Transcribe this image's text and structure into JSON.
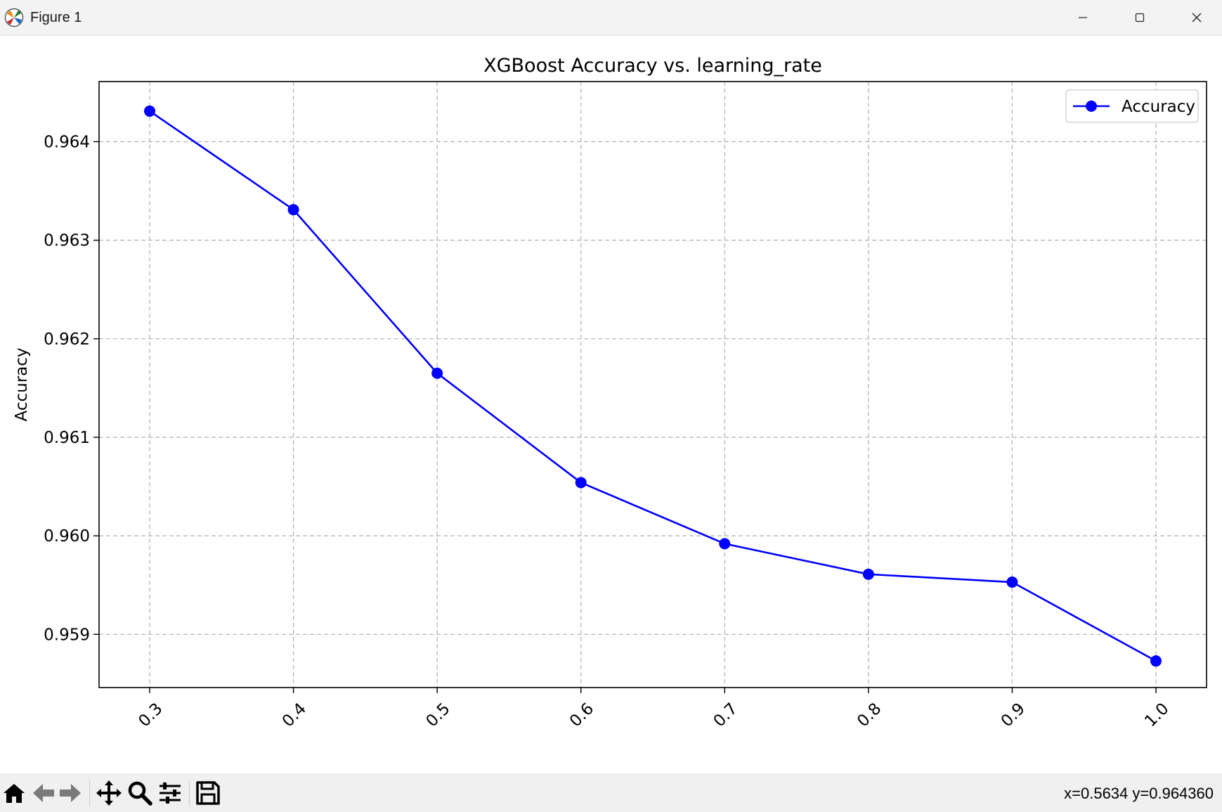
{
  "window": {
    "title": "Figure 1",
    "controls": [
      "minimize-icon",
      "maximize-icon",
      "close-icon"
    ]
  },
  "chart_data": {
    "type": "line",
    "title": "XGBoost Accuracy vs. learning_rate",
    "xlabel": "learning_rate",
    "ylabel": "Accuracy",
    "x": [
      0.3,
      0.4,
      0.5,
      0.6,
      0.7,
      0.8,
      0.9,
      1.0
    ],
    "x_tick_labels": [
      "0.3",
      "0.4",
      "0.5",
      "0.6",
      "0.7",
      "0.8",
      "0.9",
      "1.0"
    ],
    "x_tick_rotation_deg": 45,
    "xlim": [
      0.2648,
      1.0352
    ],
    "y_ticks": [
      0.959,
      0.96,
      0.961,
      0.962,
      0.963,
      0.964
    ],
    "y_tick_labels": [
      "0.959",
      "0.960",
      "0.961",
      "0.962",
      "0.963",
      "0.964"
    ],
    "ylim": [
      0.95846,
      0.96461
    ],
    "grid": true,
    "grid_style": "dashed",
    "legend_position": "top-right",
    "series": [
      {
        "name": "Accuracy",
        "color": "#0000ff",
        "marker": "circle",
        "values": [
          0.96431,
          0.96331,
          0.96165,
          0.96054,
          0.95992,
          0.95961,
          0.95953,
          0.95873
        ]
      }
    ]
  },
  "toolbar": {
    "tools": [
      "home-icon",
      "back-arrow-icon",
      "forward-arrow-icon",
      "pan-move-icon",
      "zoom-magnifier-icon",
      "configure-subplots-icon",
      "save-floppy-icon"
    ],
    "coords_text": "x=0.5634 y=0.964360"
  }
}
